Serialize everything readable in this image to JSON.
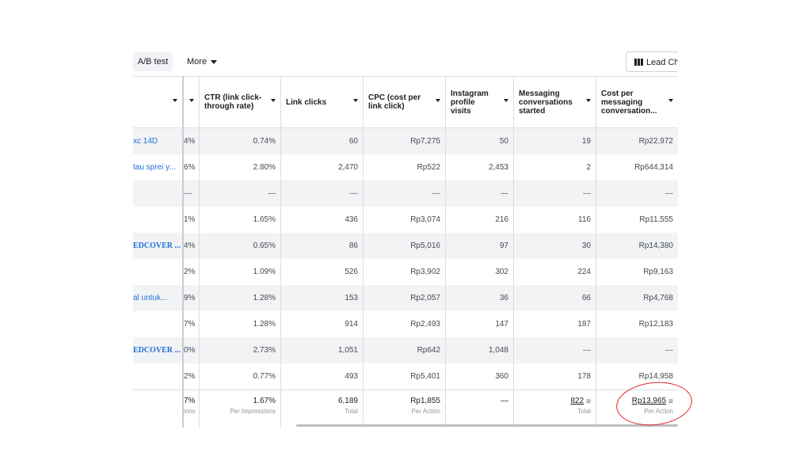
{
  "toolbar": {
    "ab_test_label": "A/B test",
    "more_label": "More",
    "lead_label": "Lead Cha"
  },
  "columns": [
    {
      "key": "name",
      "label": ""
    },
    {
      "key": "pct",
      "label": ""
    },
    {
      "key": "ctr",
      "label": "CTR (link click-through rate)"
    },
    {
      "key": "link_clicks",
      "label": "Link clicks"
    },
    {
      "key": "cpc",
      "label": "CPC (cost per link click)"
    },
    {
      "key": "ig_visits",
      "label": "Instagram profile visits"
    },
    {
      "key": "msg_started",
      "label": "Messaging conversations started"
    },
    {
      "key": "cost_per_msg",
      "label": "Cost per messaging conversation..."
    }
  ],
  "rows": [
    {
      "name": "xc 14D",
      "bold": false,
      "pct": "4%",
      "ctr": "0.74%",
      "link_clicks": "60",
      "cpc": "Rp7,275",
      "ig_visits": "50",
      "msg_started": "19",
      "cost_per_msg": "Rp22,972"
    },
    {
      "name": "tau sprei y...",
      "bold": false,
      "pct": "6%",
      "ctr": "2.80%",
      "link_clicks": "2,470",
      "cpc": "Rp522",
      "ig_visits": "2,453",
      "msg_started": "2",
      "cost_per_msg": "Rp644,314"
    },
    {
      "name": "",
      "bold": false,
      "pct": "—",
      "ctr": "—",
      "link_clicks": "—",
      "cpc": "—",
      "ig_visits": "—",
      "msg_started": "—",
      "cost_per_msg": "—"
    },
    {
      "name": "",
      "bold": false,
      "pct": "1%",
      "ctr": "1.65%",
      "link_clicks": "436",
      "cpc": "Rp3,074",
      "ig_visits": "216",
      "msg_started": "116",
      "cost_per_msg": "Rp11,555"
    },
    {
      "name": "EDCOVER ...",
      "bold": true,
      "pct": "4%",
      "ctr": "0.65%",
      "link_clicks": "86",
      "cpc": "Rp5,016",
      "ig_visits": "97",
      "msg_started": "30",
      "cost_per_msg": "Rp14,380"
    },
    {
      "name": "",
      "bold": false,
      "pct": "2%",
      "ctr": "1.09%",
      "link_clicks": "526",
      "cpc": "Rp3,902",
      "ig_visits": "302",
      "msg_started": "224",
      "cost_per_msg": "Rp9,163"
    },
    {
      "name": "al untuk...",
      "bold": false,
      "pct": "9%",
      "ctr": "1.28%",
      "link_clicks": "153",
      "cpc": "Rp2,057",
      "ig_visits": "36",
      "msg_started": "66",
      "cost_per_msg": "Rp4,768"
    },
    {
      "name": "",
      "bold": false,
      "pct": "7%",
      "ctr": "1.28%",
      "link_clicks": "914",
      "cpc": "Rp2,493",
      "ig_visits": "147",
      "msg_started": "187",
      "cost_per_msg": "Rp12,183"
    },
    {
      "name": "EDCOVER ...",
      "bold": true,
      "pct": "0%",
      "ctr": "2.73%",
      "link_clicks": "1,051",
      "cpc": "Rp642",
      "ig_visits": "1,048",
      "msg_started": "—",
      "cost_per_msg": "—"
    },
    {
      "name": "",
      "bold": false,
      "pct": "2%",
      "ctr": "0.77%",
      "link_clicks": "493",
      "cpc": "Rp5,401",
      "ig_visits": "360",
      "msg_started": "178",
      "cost_per_msg": "Rp14,958"
    }
  ],
  "totals": {
    "pct": {
      "value": "7%",
      "sub": "ions"
    },
    "ctr": {
      "value": "1.67%",
      "sub": "Per Impressions"
    },
    "link_clicks": {
      "value": "6,189",
      "sub": "Total"
    },
    "cpc": {
      "value": "Rp1,855",
      "sub": "Per Action"
    },
    "ig_visits": {
      "value": "—",
      "sub": ""
    },
    "msg_started": {
      "value": "822",
      "sub": "Total"
    },
    "cost_per_msg": {
      "value": "Rp13,965",
      "sub": "Per Action"
    }
  },
  "colors": {
    "link_blue": "#216fdb",
    "annotation_red": "#e0262b"
  }
}
